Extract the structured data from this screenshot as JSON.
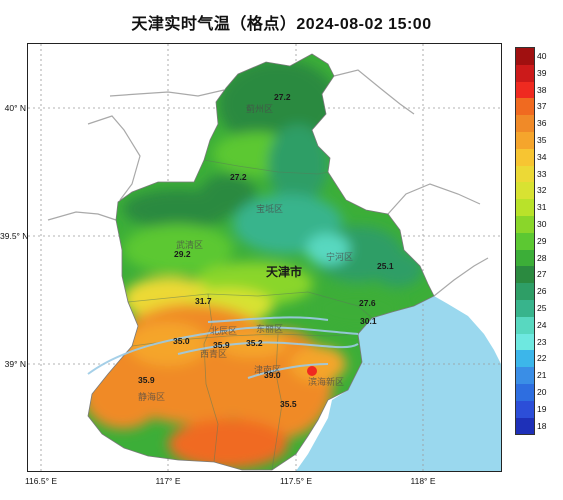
{
  "title": "天津实时气温（格点）2024-08-02 15:00",
  "axes": {
    "x_ticks": [
      "116.5° E",
      "117° E",
      "117.5° E",
      "118° E"
    ],
    "y_ticks": [
      "40° N",
      "39.5° N",
      "39° N"
    ]
  },
  "legend": {
    "values": [
      "40",
      "39",
      "38",
      "37",
      "36",
      "35",
      "34",
      "33",
      "32",
      "31",
      "30",
      "29",
      "28",
      "27",
      "26",
      "25",
      "24",
      "23",
      "22",
      "21",
      "20",
      "19",
      "18"
    ],
    "colors": [
      "#a01010",
      "#cc1a1a",
      "#ef2a20",
      "#f06a20",
      "#f08a28",
      "#f5a52c",
      "#f7c532",
      "#ecd936",
      "#d8e232",
      "#b9e22a",
      "#8ad62a",
      "#5cc832",
      "#3cae38",
      "#2b8a40",
      "#2e9e66",
      "#38b48c",
      "#58d8c0",
      "#6ee8e0",
      "#3cb6ea",
      "#3a8ee6",
      "#2e6ee0",
      "#2c4ed8",
      "#1e30b8"
    ]
  },
  "map": {
    "city_label": "天津市",
    "district_labels": [
      "蓟州区",
      "宝坻区",
      "武清区",
      "宁河区",
      "北辰区",
      "东丽区",
      "西青区",
      "津南区",
      "滨海新区",
      "静海区"
    ],
    "temperature_labels": [
      "27.2",
      "27.2",
      "29.2",
      "25.1",
      "27.6",
      "31.7",
      "30.1",
      "35.0",
      "35.9",
      "35.2",
      "35.9",
      "39.0",
      "35.5"
    ],
    "colors": {
      "sea": "#9ad8ee",
      "border": "#a9a9a9",
      "river": "#9ccbe6",
      "grid": "#9a9a9a"
    }
  }
}
